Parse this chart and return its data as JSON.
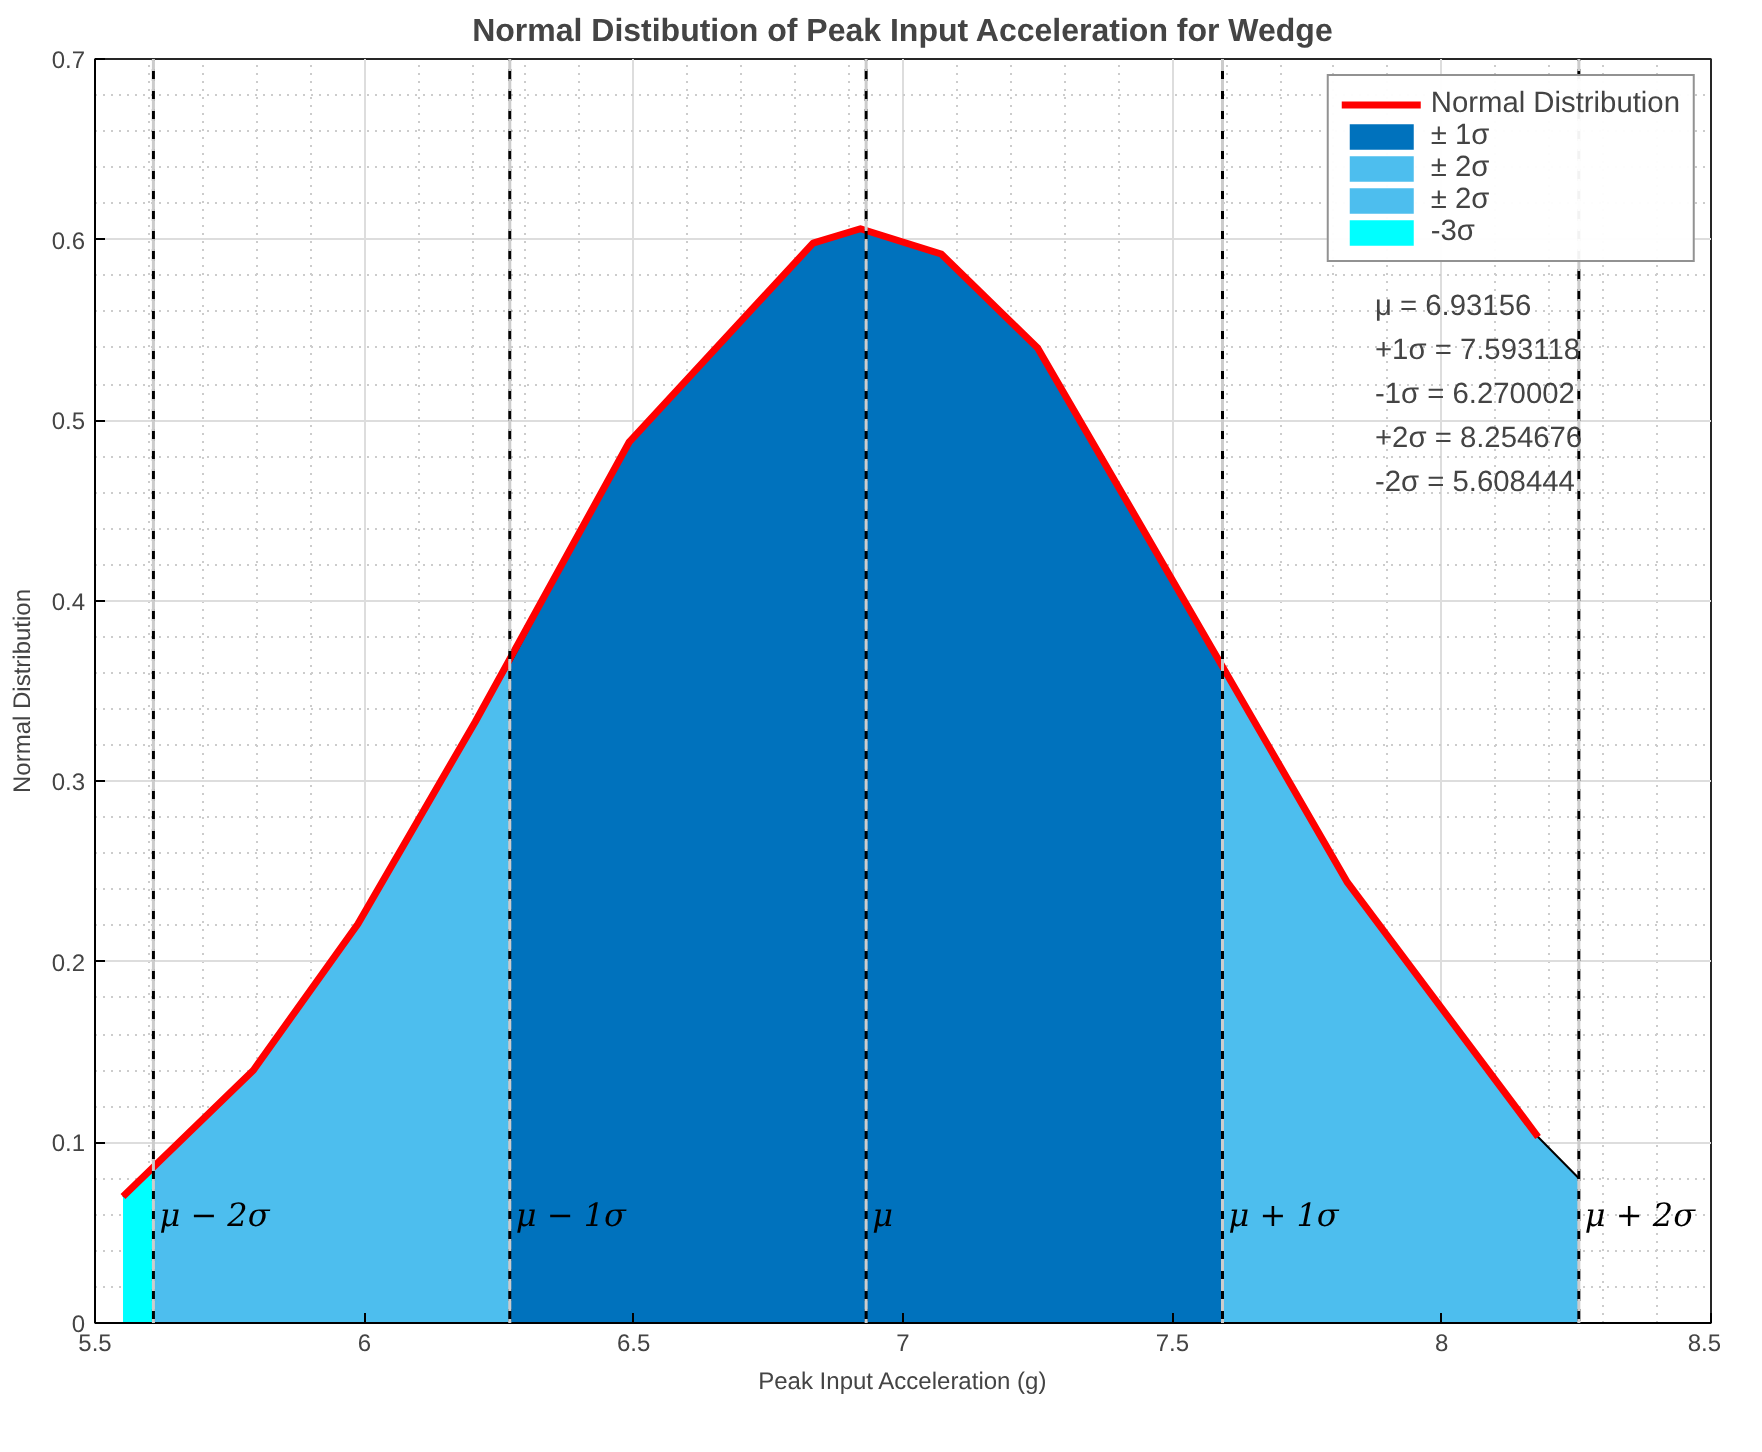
{
  "chart_data": {
    "type": "line",
    "title": "Normal Distibution of Peak Input Acceleration for Wedge",
    "xlabel": "Peak Input Acceleration (g)",
    "ylabel": "Normal Distribution",
    "xlim": [
      5.5,
      8.5
    ],
    "xticks": [
      5.5,
      6,
      6.5,
      7,
      7.5,
      8,
      8.5
    ],
    "ylim": [
      0,
      0.7
    ],
    "yticks": [
      0,
      0.1,
      0.2,
      0.3,
      0.4,
      0.5,
      0.6,
      0.7
    ],
    "grid": true,
    "legend": "top right",
    "series": [
      {
        "name": "± 1σ",
        "type": "area",
        "color": "#0072bd",
        "x": [
          6.27,
          6.492,
          6.833,
          6.921,
          7.071,
          7.25,
          7.468,
          7.593
        ],
        "values": [
          0.365,
          0.488,
          0.598,
          0.606,
          0.592,
          0.54,
          0.428,
          0.365
        ]
      },
      {
        "name": "± 2σ",
        "type": "area",
        "color": "#4dbeee",
        "x": [
          5.608,
          5.794,
          5.988,
          6.206,
          6.27
        ],
        "values": [
          0.087,
          0.14,
          0.221,
          0.333,
          0.365
        ]
      },
      {
        "name": "± 2σ",
        "type": "area",
        "color": "#4dbeee",
        "x": [
          7.593,
          7.825,
          8.179,
          8.255
        ],
        "values": [
          0.365,
          0.244,
          0.103,
          0.08
        ]
      },
      {
        "name": "-3σ",
        "type": "area",
        "color": "#00ffff",
        "x": [
          5.552,
          5.608
        ],
        "values": [
          0.07,
          0.087
        ]
      },
      {
        "name": "Normal Distribution",
        "color": "#ff0000",
        "x": [
          5.552,
          5.794,
          5.988,
          6.206,
          6.492,
          6.833,
          6.921,
          7.071,
          7.25,
          7.468,
          7.825,
          8.179
        ],
        "values": [
          0.07,
          0.14,
          0.221,
          0.333,
          0.488,
          0.598,
          0.606,
          0.592,
          0.54,
          0.428,
          0.244,
          0.103
        ]
      }
    ],
    "ref_lines": [
      {
        "axis": "x",
        "value": 5.608444,
        "label": "μ − 2σ",
        "color": "#cccccc",
        "line_style": "dashed"
      },
      {
        "axis": "x",
        "value": 6.270002,
        "label": "μ − 1σ",
        "color": "#cccccc",
        "line_style": "dashed"
      },
      {
        "axis": "x",
        "value": 6.93156,
        "label": "μ",
        "color": "#cccccc",
        "line_style": "dashed"
      },
      {
        "axis": "x",
        "value": 7.593118,
        "label": "μ + 1σ",
        "color": "#cccccc",
        "line_style": "dashed"
      },
      {
        "axis": "x",
        "value": 8.254676,
        "label": "μ + 2σ",
        "color": "#cccccc",
        "line_style": "dashed"
      }
    ],
    "annotations": [
      "μ = 6.93156",
      "+1σ = 7.593118",
      "-1σ = 6.270002",
      "+2σ = 8.254676",
      "-2σ = 5.608444"
    ]
  }
}
